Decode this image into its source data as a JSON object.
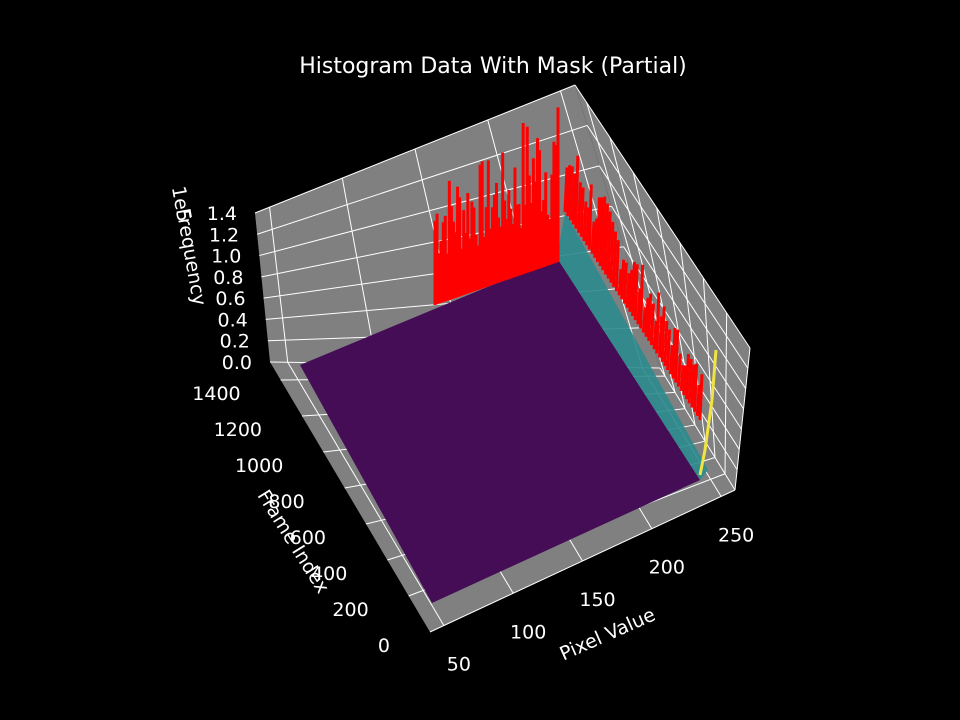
{
  "chart_data": {
    "type": "surface3d",
    "title": "Histogram Data With Mask (Partial)",
    "xlabel": "Pixel Value",
    "ylabel": "Frame Index",
    "zlabel": "Frequency",
    "z_offset_label": "1e5",
    "xlim": [
      40,
      260
    ],
    "ylim": [
      0,
      1500
    ],
    "zlim": [
      0,
      1.4
    ],
    "x_ticks": [
      "50",
      "100",
      "150",
      "200",
      "250"
    ],
    "y_ticks": [
      "0",
      "200",
      "400",
      "600",
      "800",
      "1000",
      "1200",
      "1400"
    ],
    "z_ticks": [
      "0.0",
      "0.2",
      "0.4",
      "0.6",
      "0.8",
      "1.0",
      "1.2",
      "1.4"
    ],
    "grid": true,
    "pane_color": "#808080",
    "surface_colormap": "viridis",
    "mask_color": "#ff0000",
    "series": [
      {
        "name": "masked_histogram_spikes",
        "description": "red vertical spikes along high frame index edge (pixel ~35-255) and high pixel edge",
        "peak_frequency": 1.4
      }
    ]
  }
}
